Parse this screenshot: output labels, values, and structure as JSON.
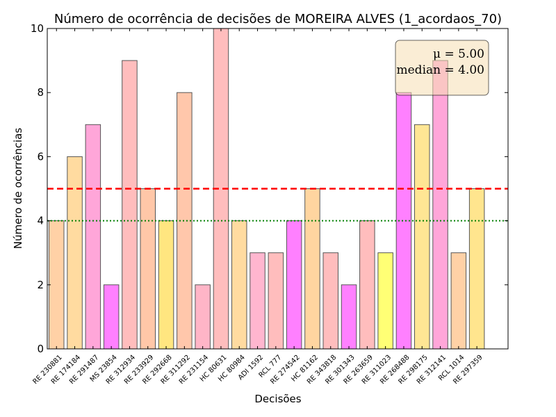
{
  "chart_data": {
    "type": "bar",
    "title": "Número de ocorrência de decisões de MOREIRA ALVES (1_acordaos_70)",
    "xlabel": "Decisões",
    "ylabel": "Número de ocorrências",
    "ylim": [
      0,
      10
    ],
    "yticks": [
      "0",
      "2",
      "4",
      "6",
      "8",
      "10"
    ],
    "categories": [
      "RE 230881",
      "RE 174184",
      "RE 291487",
      "MS 23854",
      "RE 312934",
      "RE 233929",
      "RE 292668",
      "RE 311292",
      "RE 231154",
      "HC 80631",
      "HC 80984",
      "ADI 1592",
      "RCL 777",
      "RE 274542",
      "HC 81162",
      "RE 343818",
      "RE 301343",
      "RE 263659",
      "RE 311023",
      "RE 268488",
      "RE 298175",
      "RE 312141",
      "RCL 1014",
      "RE 297359"
    ],
    "values": [
      4,
      6,
      7,
      2,
      9,
      5,
      4,
      8,
      2,
      10,
      4,
      3,
      3,
      4,
      5,
      3,
      2,
      4,
      3,
      8,
      7,
      9,
      3,
      5
    ],
    "colors": [
      "#ffd1a6",
      "#ffdba0",
      "#ffa6d9",
      "#ff80ff",
      "#ffbdbd",
      "#ffc7a8",
      "#ffe680",
      "#ffc7ab",
      "#ffb5c7",
      "#ffbdbd",
      "#ffdba0",
      "#ffb6cf",
      "#ffbdbd",
      "#ff80ff",
      "#ffd5a0",
      "#ffbdbd",
      "#ff80ff",
      "#ffbdbd",
      "#ffff75",
      "#ff80ff",
      "#ffe694",
      "#ffa6d9",
      "#ffd1a6",
      "#ffe58e"
    ],
    "mean": 5.0,
    "median": 4.0,
    "mean_line_color": "#ff0000",
    "median_line_color": "#007f00",
    "stats_box": {
      "mean_label": "μ = 5.00",
      "median_label": "median = 4.00",
      "background": "#f5deb3",
      "placement": "top-right"
    },
    "grid": false
  }
}
